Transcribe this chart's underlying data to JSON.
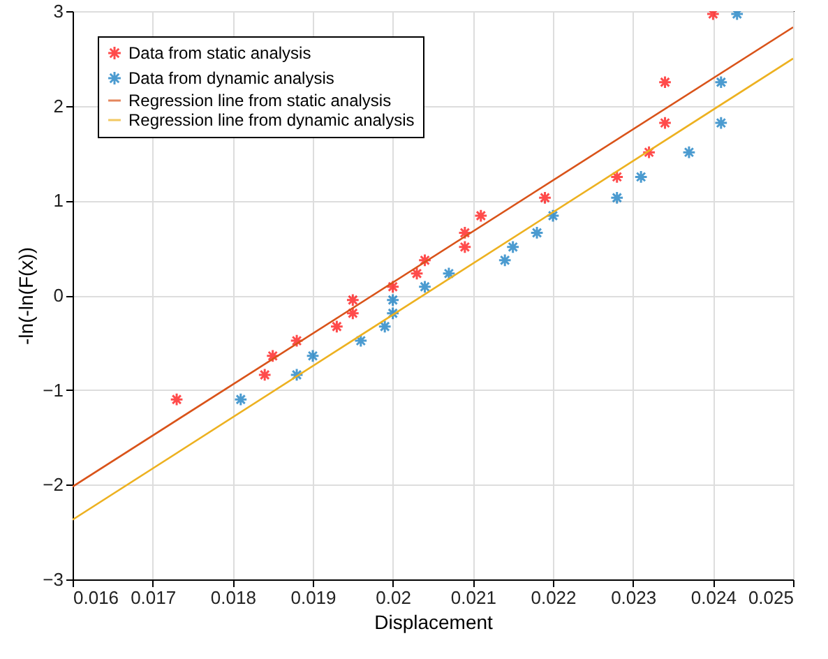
{
  "chart_data": {
    "type": "scatter",
    "xlabel": "Displacement",
    "ylabel": "-ln(-ln(F(x))",
    "xlim": [
      0.016,
      0.025
    ],
    "ylim": [
      -3,
      3
    ],
    "xticks": [
      0.016,
      0.017,
      0.018,
      0.019,
      0.02,
      0.021,
      0.022,
      0.023,
      0.024,
      0.025
    ],
    "yticks": [
      -3,
      -2,
      -1,
      0,
      1,
      2,
      3
    ],
    "grid": true,
    "legend": "top left",
    "series": [
      {
        "name": "Data from static analysis",
        "marker": "cross",
        "color": "#ff0000",
        "x": [
          0.0173,
          0.0184,
          0.0185,
          0.0188,
          0.0193,
          0.0195,
          0.0195,
          0.02,
          0.0203,
          0.0204,
          0.0209,
          0.0209,
          0.0211,
          0.0219,
          0.0228,
          0.0232,
          0.0234,
          0.0234,
          0.024
        ],
        "values": [
          -1.1,
          -0.84,
          -0.64,
          -0.48,
          -0.33,
          -0.19,
          -0.05,
          0.09,
          0.23,
          0.37,
          0.51,
          0.66,
          0.84,
          1.03,
          1.25,
          1.51,
          1.82,
          2.25,
          2.97
        ]
      },
      {
        "name": "Data from dynamic analysis",
        "marker": "cross",
        "color": "#0072bd",
        "x": [
          0.0181,
          0.0188,
          0.019,
          0.0196,
          0.0199,
          0.02,
          0.02,
          0.0204,
          0.0207,
          0.0214,
          0.0215,
          0.0218,
          0.022,
          0.0228,
          0.0231,
          0.0237,
          0.0241,
          0.0241,
          0.0243
        ],
        "values": [
          -1.1,
          -0.84,
          -0.64,
          -0.48,
          -0.33,
          -0.19,
          -0.05,
          0.09,
          0.23,
          0.37,
          0.51,
          0.66,
          0.84,
          1.03,
          1.25,
          1.51,
          1.82,
          2.25,
          2.97
        ]
      },
      {
        "name": "Regression line from static analysis",
        "type": "line",
        "color": "#d95319",
        "x": [
          0.016,
          0.025
        ],
        "values": [
          -2.02,
          2.83
        ]
      },
      {
        "name": "Regression line from dynamic analysis",
        "type": "line",
        "color": "#edb120",
        "x": [
          0.016,
          0.025
        ],
        "values": [
          -2.37,
          2.5
        ]
      }
    ]
  }
}
